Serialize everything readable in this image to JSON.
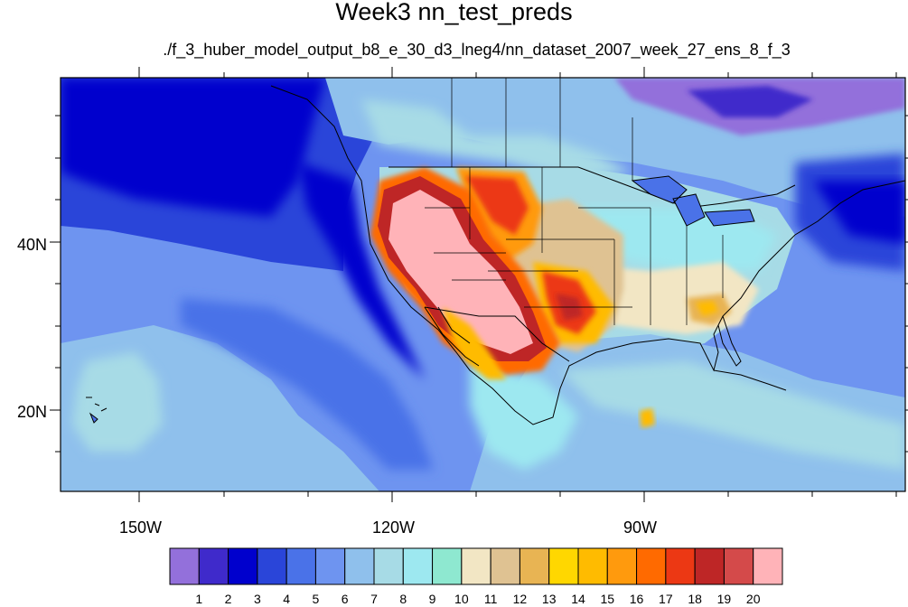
{
  "title": "Week3 nn_test_preds",
  "subtitle": "./f_3_huber_model_output_b8_e_30_d3_lneg4/nn_dataset_2007_week_27_ens_8_f_3",
  "map": {
    "projection": "cylindrical equidistant",
    "lon_range": [
      "-160",
      "-55"
    ],
    "lat_range": [
      "11",
      "59"
    ],
    "x_tick_labels": [
      "150W",
      "120W",
      "90W"
    ],
    "y_tick_labels": [
      "40N",
      "20N"
    ],
    "features": [
      "coastlines",
      "US state borders",
      "Canada province borders",
      "Mexico state borders",
      "Great Lakes",
      "Hawaii islands"
    ],
    "background_field": "predicted values (color-shaded contours)"
  },
  "colorbar": {
    "orientation": "horizontal",
    "labels": [
      "1",
      "2",
      "3",
      "4",
      "5",
      "6",
      "7",
      "8",
      "9",
      "10",
      "11",
      "12",
      "13",
      "14",
      "15",
      "16",
      "17",
      "18",
      "19",
      "20"
    ],
    "colors": [
      "#9370db",
      "#3f2acb",
      "#0000cd",
      "#2a45d9",
      "#4a72e8",
      "#6e94f0",
      "#8fc0ec",
      "#a7dbe6",
      "#9de8f0",
      "#8ee8d0",
      "#f2e6c4",
      "#dfc292",
      "#e8b453",
      "#ffd700",
      "#ffbb00",
      "#ff9a0d",
      "#ff6a00",
      "#ec3814",
      "#be2626",
      "#d44a4a",
      "#ffb3b8"
    ]
  }
}
